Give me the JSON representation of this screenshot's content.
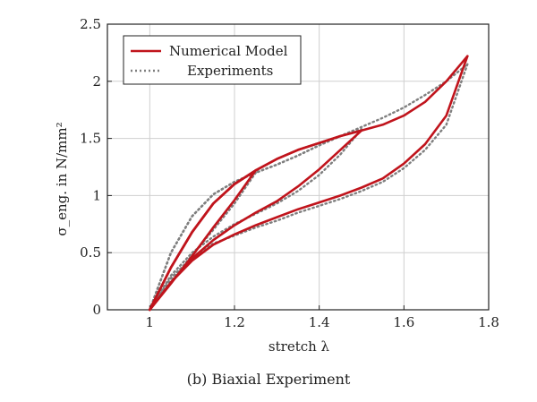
{
  "chart_data": {
    "type": "line",
    "caption": "(b) Biaxial Experiment",
    "xlabel": "stretch λ",
    "ylabel": "σ_eng. in N/mm²",
    "xlim": [
      0.9,
      1.8
    ],
    "ylim": [
      0,
      2.5
    ],
    "xticks": [
      "1",
      "1.2",
      "1.4",
      "1.6",
      "1.8"
    ],
    "xtick_values": [
      1.0,
      1.2,
      1.4,
      1.6,
      1.8
    ],
    "yticks": [
      "0",
      "0.5",
      "1",
      "1.5",
      "2",
      "2.5"
    ],
    "ytick_values": [
      0,
      0.5,
      1.0,
      1.5,
      2.0,
      2.5
    ],
    "grid": true,
    "legend_position": "top-left",
    "colors": {
      "model": "#c0141c",
      "experiment": "#7f7f7f"
    },
    "series": [
      {
        "name": "Numerical Model",
        "style": "solid",
        "segments": [
          {
            "x": [
              1.0,
              1.05,
              1.1,
              1.15,
              1.2,
              1.25
            ],
            "y": [
              0.0,
              0.37,
              0.68,
              0.93,
              1.1,
              1.22
            ]
          },
          {
            "x": [
              1.25,
              1.2,
              1.15,
              1.1,
              1.05,
              1.0
            ],
            "y": [
              1.22,
              0.96,
              0.72,
              0.47,
              0.23,
              0.0
            ]
          },
          {
            "x": [
              1.0,
              1.05,
              1.1,
              1.15,
              1.2,
              1.25,
              1.3,
              1.35,
              1.4,
              1.45,
              1.5
            ],
            "y": [
              0.0,
              0.37,
              0.68,
              0.93,
              1.1,
              1.22,
              1.32,
              1.4,
              1.46,
              1.52,
              1.57
            ]
          },
          {
            "x": [
              1.5,
              1.45,
              1.4,
              1.35,
              1.3,
              1.25,
              1.2,
              1.15,
              1.1,
              1.05,
              1.0
            ],
            "y": [
              1.57,
              1.4,
              1.23,
              1.08,
              0.95,
              0.85,
              0.74,
              0.61,
              0.45,
              0.24,
              0.0
            ]
          },
          {
            "x": [
              1.0,
              1.05,
              1.1,
              1.15,
              1.2,
              1.25,
              1.3,
              1.35,
              1.4,
              1.45,
              1.5,
              1.55,
              1.6,
              1.65,
              1.7,
              1.75
            ],
            "y": [
              0.0,
              0.37,
              0.68,
              0.93,
              1.1,
              1.22,
              1.32,
              1.4,
              1.46,
              1.52,
              1.57,
              1.62,
              1.7,
              1.82,
              2.0,
              2.22
            ]
          },
          {
            "x": [
              1.75,
              1.7,
              1.65,
              1.6,
              1.55,
              1.5,
              1.45,
              1.4,
              1.35,
              1.3,
              1.25,
              1.2,
              1.15,
              1.1,
              1.05,
              1.0
            ],
            "y": [
              2.22,
              1.7,
              1.45,
              1.28,
              1.15,
              1.07,
              1.0,
              0.94,
              0.88,
              0.81,
              0.74,
              0.66,
              0.57,
              0.43,
              0.24,
              0.0
            ]
          }
        ]
      },
      {
        "name": "Experiments",
        "style": "dotted",
        "segments": [
          {
            "x": [
              1.0,
              1.05,
              1.1,
              1.15,
              1.2,
              1.25
            ],
            "y": [
              0.0,
              0.5,
              0.82,
              1.01,
              1.12,
              1.2
            ]
          },
          {
            "x": [
              1.25,
              1.2,
              1.15,
              1.1,
              1.05,
              1.0
            ],
            "y": [
              1.2,
              0.93,
              0.7,
              0.48,
              0.25,
              0.0
            ]
          },
          {
            "x": [
              1.0,
              1.05,
              1.1,
              1.15,
              1.2,
              1.25,
              1.3,
              1.35,
              1.4,
              1.45,
              1.5
            ],
            "y": [
              0.0,
              0.5,
              0.82,
              1.01,
              1.12,
              1.2,
              1.27,
              1.35,
              1.44,
              1.52,
              1.58
            ]
          },
          {
            "x": [
              1.5,
              1.45,
              1.4,
              1.35,
              1.3,
              1.25,
              1.2,
              1.15,
              1.1,
              1.05,
              1.0
            ],
            "y": [
              1.58,
              1.36,
              1.18,
              1.04,
              0.93,
              0.84,
              0.75,
              0.64,
              0.5,
              0.3,
              0.0
            ]
          },
          {
            "x": [
              1.0,
              1.05,
              1.1,
              1.15,
              1.2,
              1.25,
              1.3,
              1.35,
              1.4,
              1.45,
              1.5,
              1.55,
              1.6,
              1.65,
              1.7,
              1.75
            ],
            "y": [
              0.0,
              0.5,
              0.82,
              1.01,
              1.12,
              1.2,
              1.27,
              1.35,
              1.44,
              1.52,
              1.6,
              1.68,
              1.77,
              1.88,
              2.0,
              2.15
            ]
          },
          {
            "x": [
              1.75,
              1.7,
              1.65,
              1.6,
              1.55,
              1.5,
              1.45,
              1.4,
              1.35,
              1.3,
              1.25,
              1.2,
              1.15,
              1.1,
              1.05,
              1.0
            ],
            "y": [
              2.15,
              1.62,
              1.4,
              1.24,
              1.12,
              1.04,
              0.97,
              0.91,
              0.85,
              0.78,
              0.72,
              0.65,
              0.58,
              0.46,
              0.28,
              0.0
            ]
          }
        ]
      }
    ]
  }
}
